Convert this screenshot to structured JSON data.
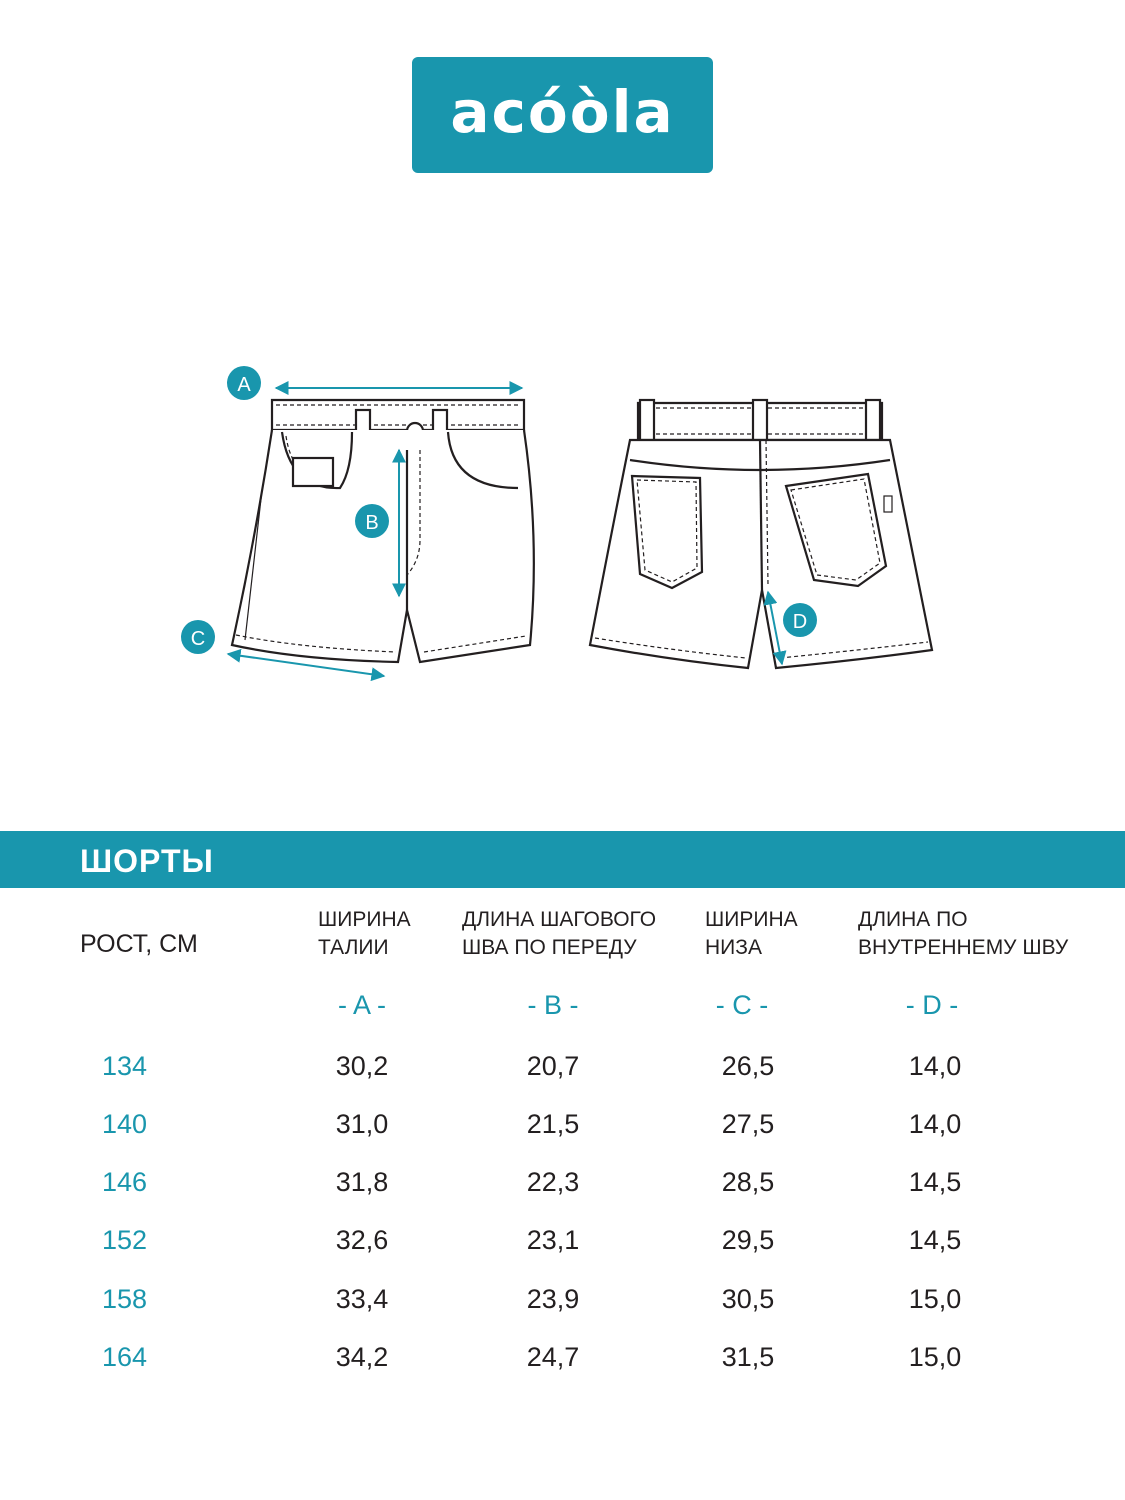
{
  "brand": {
    "logo_text": "acóòla",
    "color": "#1996ad"
  },
  "diagram": {
    "labels": [
      "A",
      "B",
      "C",
      "D"
    ],
    "front_view": "shorts-front",
    "back_view": "shorts-back"
  },
  "table": {
    "title": "ШОРТЫ",
    "columns": [
      {
        "line1": "РОСТ, СМ",
        "line2": "",
        "letter": ""
      },
      {
        "line1": "ШИРИНА",
        "line2": "ТАЛИИ",
        "letter": "- A -"
      },
      {
        "line1": "ДЛИНА ШАГОВОГО",
        "line2": "ШВА ПО ПЕРЕДУ",
        "letter": "- B -"
      },
      {
        "line1": "ШИРИНА",
        "line2": "НИЗА",
        "letter": "- C -"
      },
      {
        "line1": "ДЛИНА ПО",
        "line2": "ВНУТРЕННЕМУ ШВУ",
        "letter": "- D -"
      }
    ],
    "rows": [
      [
        "134",
        "30,2",
        "20,7",
        "26,5",
        "14,0"
      ],
      [
        "140",
        "31,0",
        "21,5",
        "27,5",
        "14,0"
      ],
      [
        "146",
        "31,8",
        "22,3",
        "28,5",
        "14,5"
      ],
      [
        "152",
        "32,6",
        "23,1",
        "29,5",
        "14,5"
      ],
      [
        "158",
        "33,4",
        "23,9",
        "30,5",
        "15,0"
      ],
      [
        "164",
        "34,2",
        "24,7",
        "31,5",
        "15,0"
      ]
    ]
  }
}
